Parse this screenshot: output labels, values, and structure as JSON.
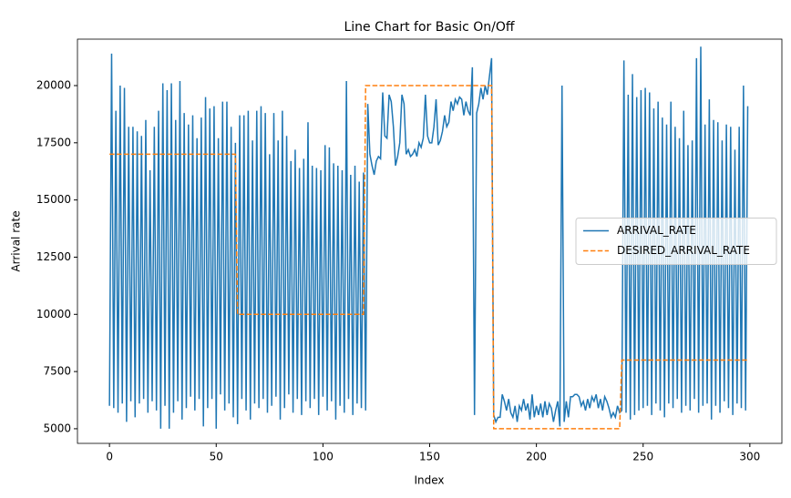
{
  "chart_data": {
    "type": "line",
    "title": "Line Chart for Basic On/Off",
    "xlabel": "Index",
    "ylabel": "Arrival rate",
    "x": [
      0,
      1,
      2,
      3,
      4,
      5,
      6,
      7,
      8,
      9,
      10,
      11,
      12,
      13,
      14,
      15,
      16,
      17,
      18,
      19,
      20,
      21,
      22,
      23,
      24,
      25,
      26,
      27,
      28,
      29,
      30,
      31,
      32,
      33,
      34,
      35,
      36,
      37,
      38,
      39,
      40,
      41,
      42,
      43,
      44,
      45,
      46,
      47,
      48,
      49,
      50,
      51,
      52,
      53,
      54,
      55,
      56,
      57,
      58,
      59,
      60,
      61,
      62,
      63,
      64,
      65,
      66,
      67,
      68,
      69,
      70,
      71,
      72,
      73,
      74,
      75,
      76,
      77,
      78,
      79,
      80,
      81,
      82,
      83,
      84,
      85,
      86,
      87,
      88,
      89,
      90,
      91,
      92,
      93,
      94,
      95,
      96,
      97,
      98,
      99,
      100,
      101,
      102,
      103,
      104,
      105,
      106,
      107,
      108,
      109,
      110,
      111,
      112,
      113,
      114,
      115,
      116,
      117,
      118,
      119,
      120,
      121,
      122,
      123,
      124,
      125,
      126,
      127,
      128,
      129,
      130,
      131,
      132,
      133,
      134,
      135,
      136,
      137,
      138,
      139,
      140,
      141,
      142,
      143,
      144,
      145,
      146,
      147,
      148,
      149,
      150,
      151,
      152,
      153,
      154,
      155,
      156,
      157,
      158,
      159,
      160,
      161,
      162,
      163,
      164,
      165,
      166,
      167,
      168,
      169,
      170,
      171,
      172,
      173,
      174,
      175,
      176,
      177,
      178,
      179,
      180,
      181,
      182,
      183,
      184,
      185,
      186,
      187,
      188,
      189,
      190,
      191,
      192,
      193,
      194,
      195,
      196,
      197,
      198,
      199,
      200,
      201,
      202,
      203,
      204,
      205,
      206,
      207,
      208,
      209,
      210,
      211,
      212,
      213,
      214,
      215,
      216,
      217,
      218,
      219,
      220,
      221,
      222,
      223,
      224,
      225,
      226,
      227,
      228,
      229,
      230,
      231,
      232,
      233,
      234,
      235,
      236,
      237,
      238,
      239,
      240,
      241,
      242,
      243,
      244,
      245,
      246,
      247,
      248,
      249,
      250,
      251,
      252,
      253,
      254,
      255,
      256,
      257,
      258,
      259,
      260,
      261,
      262,
      263,
      264,
      265,
      266,
      267,
      268,
      269,
      270,
      271,
      272,
      273,
      274,
      275,
      276,
      277,
      278,
      279,
      280,
      281,
      282,
      283,
      284,
      285,
      286,
      287,
      288,
      289,
      290,
      291,
      292,
      293,
      294,
      295,
      296,
      297,
      298,
      299
    ],
    "series": [
      {
        "name": "ARRIVAL_RATE",
        "color": "#1f77b4",
        "dash": "solid",
        "values": [
          6000,
          21400,
          5900,
          18900,
          5700,
          20000,
          6100,
          19900,
          5300,
          18200,
          6200,
          18200,
          5500,
          18000,
          6100,
          17800,
          6300,
          18500,
          5700,
          16300,
          6200,
          18200,
          5800,
          18900,
          5000,
          20100,
          6000,
          19800,
          5000,
          20100,
          5700,
          18500,
          6200,
          20200,
          5400,
          18800,
          5900,
          18300,
          6400,
          18700,
          5800,
          17700,
          6300,
          18600,
          5100,
          19500,
          5900,
          19000,
          6300,
          19100,
          5000,
          17700,
          6500,
          19300,
          5800,
          19300,
          6100,
          18200,
          5500,
          17500,
          5200,
          18700,
          6300,
          18700,
          5800,
          18900,
          5400,
          17600,
          6100,
          18900,
          5900,
          19100,
          6300,
          18800,
          5700,
          17000,
          6000,
          18800,
          6400,
          17600,
          5400,
          18900,
          5900,
          17800,
          6500,
          16700,
          5700,
          17200,
          6300,
          16400,
          5600,
          16800,
          6200,
          18400,
          5900,
          16500,
          6300,
          16400,
          5600,
          16300,
          6400,
          17400,
          5800,
          17300,
          6200,
          16600,
          5400,
          16500,
          6000,
          16300,
          5700,
          20200,
          6300,
          16100,
          5600,
          16500,
          6100,
          15800,
          5900,
          16200,
          5800,
          19200,
          17000,
          16500,
          16100,
          16700,
          16900,
          16800,
          19700,
          17800,
          17700,
          19600,
          19300,
          18200,
          16500,
          16900,
          17500,
          19600,
          19200,
          17000,
          17200,
          16900,
          17000,
          17200,
          16900,
          17500,
          17300,
          17700,
          19600,
          17800,
          17500,
          17500,
          18200,
          19400,
          17400,
          17600,
          18000,
          18700,
          18200,
          18400,
          19300,
          18900,
          19400,
          19200,
          19500,
          19400,
          18700,
          19300,
          18900,
          18700,
          20800,
          5600,
          18800,
          19200,
          19900,
          19400,
          20000,
          19600,
          20400,
          21200,
          5600,
          5300,
          5500,
          5500,
          6500,
          6200,
          5800,
          6300,
          5700,
          5500,
          6000,
          5300,
          6000,
          5800,
          6300,
          5800,
          6100,
          5400,
          6500,
          5500,
          6000,
          5600,
          6100,
          5500,
          6200,
          5600,
          6100,
          5900,
          5300,
          5800,
          6200,
          5100,
          20000,
          5300,
          6200,
          5500,
          6400,
          6400,
          6500,
          6500,
          6400,
          6000,
          6200,
          5800,
          6300,
          5900,
          6400,
          6200,
          6500,
          5900,
          6300,
          5800,
          6400,
          6200,
          5900,
          5500,
          5700,
          5500,
          6000,
          5700,
          5800,
          21100,
          5700,
          19600,
          5400,
          20500,
          5600,
          19500,
          5800,
          19800,
          5900,
          19900,
          6000,
          19700,
          5600,
          19000,
          6100,
          19300,
          5800,
          18600,
          5500,
          18300,
          6100,
          19300,
          5900,
          18200,
          6300,
          17700,
          5700,
          18900,
          6000,
          17400,
          5800,
          17600,
          6300,
          21200,
          5700,
          21700,
          6000,
          18300,
          6100,
          19400,
          5400,
          18500,
          6000,
          18400,
          5700,
          17600,
          6200,
          18300,
          5900,
          18200,
          5600,
          17200,
          6100,
          18200,
          5900,
          20000,
          5800,
          19100
        ]
      },
      {
        "name": "DESIRED_ARRIVAL_RATE",
        "color": "#ff7f0e",
        "dash": "dashed",
        "values": [
          17000,
          17000,
          17000,
          17000,
          17000,
          17000,
          17000,
          17000,
          17000,
          17000,
          17000,
          17000,
          17000,
          17000,
          17000,
          17000,
          17000,
          17000,
          17000,
          17000,
          17000,
          17000,
          17000,
          17000,
          17000,
          17000,
          17000,
          17000,
          17000,
          17000,
          17000,
          17000,
          17000,
          17000,
          17000,
          17000,
          17000,
          17000,
          17000,
          17000,
          17000,
          17000,
          17000,
          17000,
          17000,
          17000,
          17000,
          17000,
          17000,
          17000,
          17000,
          17000,
          17000,
          17000,
          17000,
          17000,
          17000,
          17000,
          17000,
          17000,
          10000,
          10000,
          10000,
          10000,
          10000,
          10000,
          10000,
          10000,
          10000,
          10000,
          10000,
          10000,
          10000,
          10000,
          10000,
          10000,
          10000,
          10000,
          10000,
          10000,
          10000,
          10000,
          10000,
          10000,
          10000,
          10000,
          10000,
          10000,
          10000,
          10000,
          10000,
          10000,
          10000,
          10000,
          10000,
          10000,
          10000,
          10000,
          10000,
          10000,
          10000,
          10000,
          10000,
          10000,
          10000,
          10000,
          10000,
          10000,
          10000,
          10000,
          10000,
          10000,
          10000,
          10000,
          10000,
          10000,
          10000,
          10000,
          10000,
          10000,
          20000,
          20000,
          20000,
          20000,
          20000,
          20000,
          20000,
          20000,
          20000,
          20000,
          20000,
          20000,
          20000,
          20000,
          20000,
          20000,
          20000,
          20000,
          20000,
          20000,
          20000,
          20000,
          20000,
          20000,
          20000,
          20000,
          20000,
          20000,
          20000,
          20000,
          20000,
          20000,
          20000,
          20000,
          20000,
          20000,
          20000,
          20000,
          20000,
          20000,
          20000,
          20000,
          20000,
          20000,
          20000,
          20000,
          20000,
          20000,
          20000,
          20000,
          20000,
          20000,
          20000,
          20000,
          20000,
          20000,
          20000,
          20000,
          20000,
          20000,
          5000,
          5000,
          5000,
          5000,
          5000,
          5000,
          5000,
          5000,
          5000,
          5000,
          5000,
          5000,
          5000,
          5000,
          5000,
          5000,
          5000,
          5000,
          5000,
          5000,
          5000,
          5000,
          5000,
          5000,
          5000,
          5000,
          5000,
          5000,
          5000,
          5000,
          5000,
          5000,
          5000,
          5000,
          5000,
          5000,
          5000,
          5000,
          5000,
          5000,
          5000,
          5000,
          5000,
          5000,
          5000,
          5000,
          5000,
          5000,
          5000,
          5000,
          5000,
          5000,
          5000,
          5000,
          5000,
          5000,
          5000,
          5000,
          5000,
          5000,
          8000,
          8000,
          8000,
          8000,
          8000,
          8000,
          8000,
          8000,
          8000,
          8000,
          8000,
          8000,
          8000,
          8000,
          8000,
          8000,
          8000,
          8000,
          8000,
          8000,
          8000,
          8000,
          8000,
          8000,
          8000,
          8000,
          8000,
          8000,
          8000,
          8000,
          8000,
          8000,
          8000,
          8000,
          8000,
          8000,
          8000,
          8000,
          8000,
          8000,
          8000,
          8000,
          8000,
          8000,
          8000,
          8000,
          8000,
          8000,
          8000,
          8000,
          8000,
          8000,
          8000,
          8000,
          8000,
          8000,
          8000,
          8000,
          8000,
          8000
        ]
      }
    ],
    "xlim": [
      -15,
      315
    ],
    "xticks": [
      0,
      50,
      100,
      150,
      200,
      250,
      300
    ],
    "ylim": [
      4360,
      22030
    ],
    "yticks": [
      5000,
      7500,
      10000,
      12500,
      15000,
      17500,
      20000
    ],
    "grid": false,
    "legend": "center right"
  }
}
